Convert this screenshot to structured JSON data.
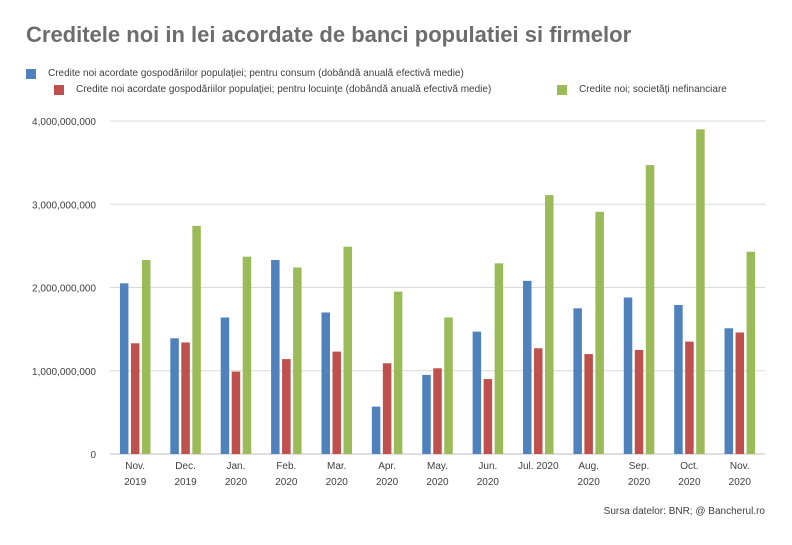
{
  "title": "Creditele noi in lei acordate de banci populatiei si firmelor",
  "source": "Sursa datelor: BNR; @ Bancherul.ro",
  "colors": {
    "consum": "#4f81bd",
    "locuinte": "#c0504d",
    "firme": "#9bbb59",
    "grid": "#d9d9d9",
    "text": "#404040"
  },
  "chart_data": {
    "type": "bar",
    "title": "Creditele noi in lei acordate de banci populatiei si firmelor",
    "categories": [
      [
        "Nov.",
        "2019"
      ],
      [
        "Dec.",
        "2019"
      ],
      [
        "Jan.",
        "2020"
      ],
      [
        "Feb.",
        "2020"
      ],
      [
        "Mar.",
        "2020"
      ],
      [
        "Apr.",
        "2020"
      ],
      [
        "May.",
        "2020"
      ],
      [
        "Jun.",
        "2020"
      ],
      [
        "Jul. 2020",
        ""
      ],
      [
        "Aug.",
        "2020"
      ],
      [
        "Sep.",
        "2020"
      ],
      [
        "Oct.",
        "2020"
      ],
      [
        "Nov.",
        "2020"
      ]
    ],
    "series": [
      {
        "name": "Credite noi acordate gospodăriilor populaţiei; pentru consum (dobândă anuală efectivă medie)",
        "color": "#4f81bd",
        "values": [
          2050000000,
          1390000000,
          1640000000,
          2330000000,
          1700000000,
          570000000,
          950000000,
          1470000000,
          2080000000,
          1750000000,
          1880000000,
          1790000000,
          1510000000
        ]
      },
      {
        "name": "Credite noi acordate gospodăriilor populaţiei; pentru locuinţe (dobândă anuală efectivă medie)",
        "color": "#c0504d",
        "values": [
          1330000000,
          1340000000,
          990000000,
          1140000000,
          1230000000,
          1090000000,
          1030000000,
          900000000,
          1270000000,
          1200000000,
          1250000000,
          1350000000,
          1460000000
        ]
      },
      {
        "name": "Credite noi; societăţi nefinanciare",
        "color": "#9bbb59",
        "values": [
          2330000000,
          2740000000,
          2370000000,
          2240000000,
          2490000000,
          1950000000,
          1640000000,
          2290000000,
          3110000000,
          2910000000,
          3470000000,
          3900000000,
          2430000000
        ]
      }
    ],
    "yticks": [
      "0",
      "1,000,000,000",
      "2,000,000,000",
      "3,000,000,000",
      "4,000,000,000"
    ],
    "ylim": [
      0,
      4000000000
    ],
    "grid": true,
    "legend": "top-left",
    "xlabel": "",
    "ylabel": ""
  }
}
